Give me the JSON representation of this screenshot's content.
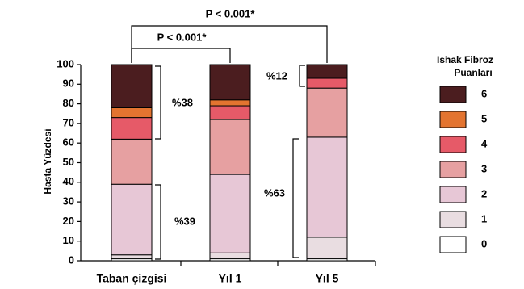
{
  "chart_data": {
    "type": "stacked_bar",
    "ylabel": "Hasta Yüzdesi",
    "categories": [
      "Taban çizgisi",
      "Yıl 1",
      "Yıl 5"
    ],
    "series": [
      {
        "name": "0",
        "color": "#ffffff",
        "values": [
          1,
          1,
          1
        ]
      },
      {
        "name": "1",
        "color": "#e9dde1",
        "values": [
          2,
          3,
          11
        ]
      },
      {
        "name": "2",
        "color": "#e7c7d6",
        "values": [
          36,
          40,
          51
        ]
      },
      {
        "name": "3",
        "color": "#e6a0a1",
        "values": [
          23,
          28,
          25
        ]
      },
      {
        "name": "4",
        "color": "#e65a68",
        "values": [
          11,
          7,
          5
        ]
      },
      {
        "name": "5",
        "color": "#e37430",
        "values": [
          5,
          3,
          0
        ]
      },
      {
        "name": "6",
        "color": "#4b1d1f",
        "values": [
          22,
          18,
          7
        ]
      }
    ],
    "ylim": [
      0,
      100
    ],
    "yticks": [
      0,
      10,
      20,
      30,
      40,
      50,
      60,
      70,
      80,
      90,
      100
    ],
    "legend_title": [
      "Ishak Fibroz",
      "Puanları"
    ],
    "annotations": [
      "P < 0.001*",
      "P < 0.001*",
      "%38",
      "%39",
      "%12",
      "%63"
    ]
  }
}
